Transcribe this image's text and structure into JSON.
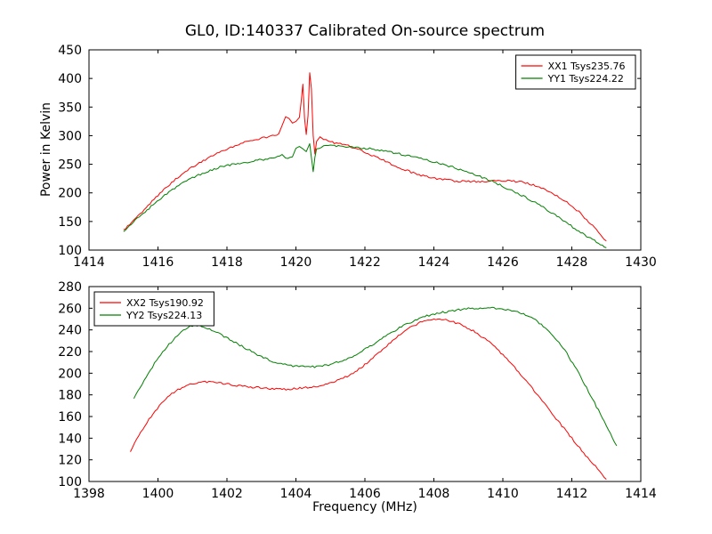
{
  "figure": {
    "title": "GL0, ID:140337 Calibrated On-source spectrum",
    "xlabel": "Frequency (MHz)",
    "ylabel": "Power in Kelvin"
  },
  "colors": {
    "xx_line": "#ff0000",
    "yy_line": "#008000",
    "axis": "#000000",
    "background": "#ffffff"
  },
  "chart_data": [
    {
      "type": "line",
      "title": "GL0, ID:140337 Calibrated On-source spectrum",
      "xlabel": "",
      "ylabel": "Power in Kelvin",
      "xlim": [
        1414,
        1430
      ],
      "ylim": [
        100,
        450
      ],
      "xticks": [
        1414,
        1416,
        1418,
        1420,
        1422,
        1424,
        1426,
        1428,
        1430
      ],
      "yticks": [
        100,
        150,
        200,
        250,
        300,
        350,
        400,
        450
      ],
      "grid": false,
      "legend_position": "top-right",
      "series": [
        {
          "name": "XX1 Tsys235.76",
          "color": "#ff0000",
          "points": [
            [
              1415.0,
              135
            ],
            [
              1415.3,
              152
            ],
            [
              1415.6,
              170
            ],
            [
              1416.0,
              196
            ],
            [
              1416.4,
              218
            ],
            [
              1416.8,
              238
            ],
            [
              1417.2,
              252
            ],
            [
              1417.6,
              266
            ],
            [
              1418.0,
              277
            ],
            [
              1418.4,
              286
            ],
            [
              1418.8,
              293
            ],
            [
              1419.2,
              298
            ],
            [
              1419.5,
              303
            ],
            [
              1419.6,
              318
            ],
            [
              1419.7,
              333
            ],
            [
              1419.8,
              330
            ],
            [
              1419.9,
              322
            ],
            [
              1420.0,
              325
            ],
            [
              1420.1,
              332
            ],
            [
              1420.15,
              358
            ],
            [
              1420.2,
              390
            ],
            [
              1420.25,
              330
            ],
            [
              1420.3,
              302
            ],
            [
              1420.35,
              335
            ],
            [
              1420.4,
              410
            ],
            [
              1420.45,
              382
            ],
            [
              1420.5,
              300
            ],
            [
              1420.55,
              268
            ],
            [
              1420.6,
              290
            ],
            [
              1420.7,
              298
            ],
            [
              1420.8,
              293
            ],
            [
              1421.0,
              289
            ],
            [
              1421.4,
              284
            ],
            [
              1421.8,
              277
            ],
            [
              1422.2,
              266
            ],
            [
              1422.6,
              255
            ],
            [
              1423.0,
              244
            ],
            [
              1423.4,
              235
            ],
            [
              1423.8,
              228
            ],
            [
              1424.2,
              224
            ],
            [
              1424.6,
              221
            ],
            [
              1425.0,
              220
            ],
            [
              1425.4,
              220
            ],
            [
              1425.8,
              221
            ],
            [
              1426.2,
              221
            ],
            [
              1426.6,
              219
            ],
            [
              1427.0,
              212
            ],
            [
              1427.4,
              201
            ],
            [
              1427.8,
              186
            ],
            [
              1428.2,
              167
            ],
            [
              1428.6,
              143
            ],
            [
              1429.0,
              116
            ]
          ]
        },
        {
          "name": "YY1 Tsys224.22",
          "color": "#008000",
          "points": [
            [
              1415.0,
              133
            ],
            [
              1415.4,
              155
            ],
            [
              1415.8,
              176
            ],
            [
              1416.2,
              196
            ],
            [
              1416.6,
              213
            ],
            [
              1417.0,
              227
            ],
            [
              1417.4,
              237
            ],
            [
              1417.8,
              245
            ],
            [
              1418.2,
              250
            ],
            [
              1418.6,
              254
            ],
            [
              1419.0,
              258
            ],
            [
              1419.4,
              261
            ],
            [
              1419.6,
              267
            ],
            [
              1419.7,
              260
            ],
            [
              1419.9,
              263
            ],
            [
              1420.0,
              278
            ],
            [
              1420.1,
              281
            ],
            [
              1420.2,
              277
            ],
            [
              1420.3,
              272
            ],
            [
              1420.4,
              286
            ],
            [
              1420.45,
              262
            ],
            [
              1420.5,
              237
            ],
            [
              1420.55,
              262
            ],
            [
              1420.6,
              278
            ],
            [
              1420.8,
              281
            ],
            [
              1421.0,
              282
            ],
            [
              1421.4,
              281
            ],
            [
              1421.8,
              279
            ],
            [
              1422.2,
              277
            ],
            [
              1422.6,
              273
            ],
            [
              1423.0,
              268
            ],
            [
              1423.4,
              263
            ],
            [
              1423.8,
              257
            ],
            [
              1424.2,
              251
            ],
            [
              1424.6,
              244
            ],
            [
              1425.0,
              236
            ],
            [
              1425.4,
              227
            ],
            [
              1425.8,
              217
            ],
            [
              1426.2,
              206
            ],
            [
              1426.6,
              194
            ],
            [
              1427.0,
              181
            ],
            [
              1427.4,
              166
            ],
            [
              1427.8,
              150
            ],
            [
              1428.2,
              133
            ],
            [
              1428.6,
              118
            ],
            [
              1429.0,
              104
            ]
          ]
        }
      ]
    },
    {
      "type": "line",
      "title": "",
      "xlabel": "Frequency (MHz)",
      "ylabel": "",
      "xlim": [
        1398,
        1414
      ],
      "ylim": [
        100,
        280
      ],
      "xticks": [
        1398,
        1400,
        1402,
        1404,
        1406,
        1408,
        1410,
        1412,
        1414
      ],
      "yticks": [
        100,
        120,
        140,
        160,
        180,
        200,
        220,
        240,
        260,
        280
      ],
      "grid": false,
      "legend_position": "top-left",
      "series": [
        {
          "name": "XX2 Tsys190.92",
          "color": "#ff0000",
          "points": [
            [
              1399.2,
              128
            ],
            [
              1399.5,
              146
            ],
            [
              1399.8,
              160
            ],
            [
              1400.1,
              172
            ],
            [
              1400.4,
              181
            ],
            [
              1400.7,
              187
            ],
            [
              1401.0,
              190
            ],
            [
              1401.3,
              192
            ],
            [
              1401.6,
              192
            ],
            [
              1402.0,
              190
            ],
            [
              1402.4,
              188
            ],
            [
              1402.8,
              187
            ],
            [
              1403.2,
              186
            ],
            [
              1403.6,
              185
            ],
            [
              1404.0,
              186
            ],
            [
              1404.4,
              187
            ],
            [
              1404.8,
              189
            ],
            [
              1405.2,
              193
            ],
            [
              1405.6,
              199
            ],
            [
              1406.0,
              208
            ],
            [
              1406.4,
              219
            ],
            [
              1406.8,
              230
            ],
            [
              1407.2,
              240
            ],
            [
              1407.6,
              247
            ],
            [
              1408.0,
              250
            ],
            [
              1408.4,
              249
            ],
            [
              1408.8,
              245
            ],
            [
              1409.2,
              238
            ],
            [
              1409.6,
              229
            ],
            [
              1410.0,
              217
            ],
            [
              1410.4,
              203
            ],
            [
              1410.8,
              188
            ],
            [
              1411.2,
              172
            ],
            [
              1411.6,
              156
            ],
            [
              1412.0,
              140
            ],
            [
              1412.4,
              124
            ],
            [
              1412.8,
              110
            ],
            [
              1413.0,
              102
            ]
          ]
        },
        {
          "name": "YY2 Tsys224.13",
          "color": "#008000",
          "points": [
            [
              1399.3,
              176
            ],
            [
              1399.6,
              194
            ],
            [
              1399.9,
              209
            ],
            [
              1400.2,
              222
            ],
            [
              1400.5,
              233
            ],
            [
              1400.8,
              241
            ],
            [
              1401.0,
              244
            ],
            [
              1401.2,
              244
            ],
            [
              1401.5,
              241
            ],
            [
              1401.8,
              236
            ],
            [
              1402.2,
              229
            ],
            [
              1402.6,
              222
            ],
            [
              1403.0,
              215
            ],
            [
              1403.4,
              210
            ],
            [
              1403.8,
              207
            ],
            [
              1404.2,
              206
            ],
            [
              1404.6,
              206
            ],
            [
              1405.0,
              208
            ],
            [
              1405.4,
              212
            ],
            [
              1405.8,
              218
            ],
            [
              1406.2,
              226
            ],
            [
              1406.6,
              234
            ],
            [
              1407.0,
              242
            ],
            [
              1407.4,
              248
            ],
            [
              1407.8,
              253
            ],
            [
              1408.2,
              256
            ],
            [
              1408.6,
              258
            ],
            [
              1409.0,
              260
            ],
            [
              1409.4,
              260
            ],
            [
              1409.8,
              260
            ],
            [
              1410.2,
              258
            ],
            [
              1410.6,
              255
            ],
            [
              1411.0,
              248
            ],
            [
              1411.4,
              237
            ],
            [
              1411.8,
              221
            ],
            [
              1412.2,
              200
            ],
            [
              1412.6,
              176
            ],
            [
              1413.0,
              152
            ],
            [
              1413.3,
              133
            ]
          ]
        }
      ]
    }
  ]
}
